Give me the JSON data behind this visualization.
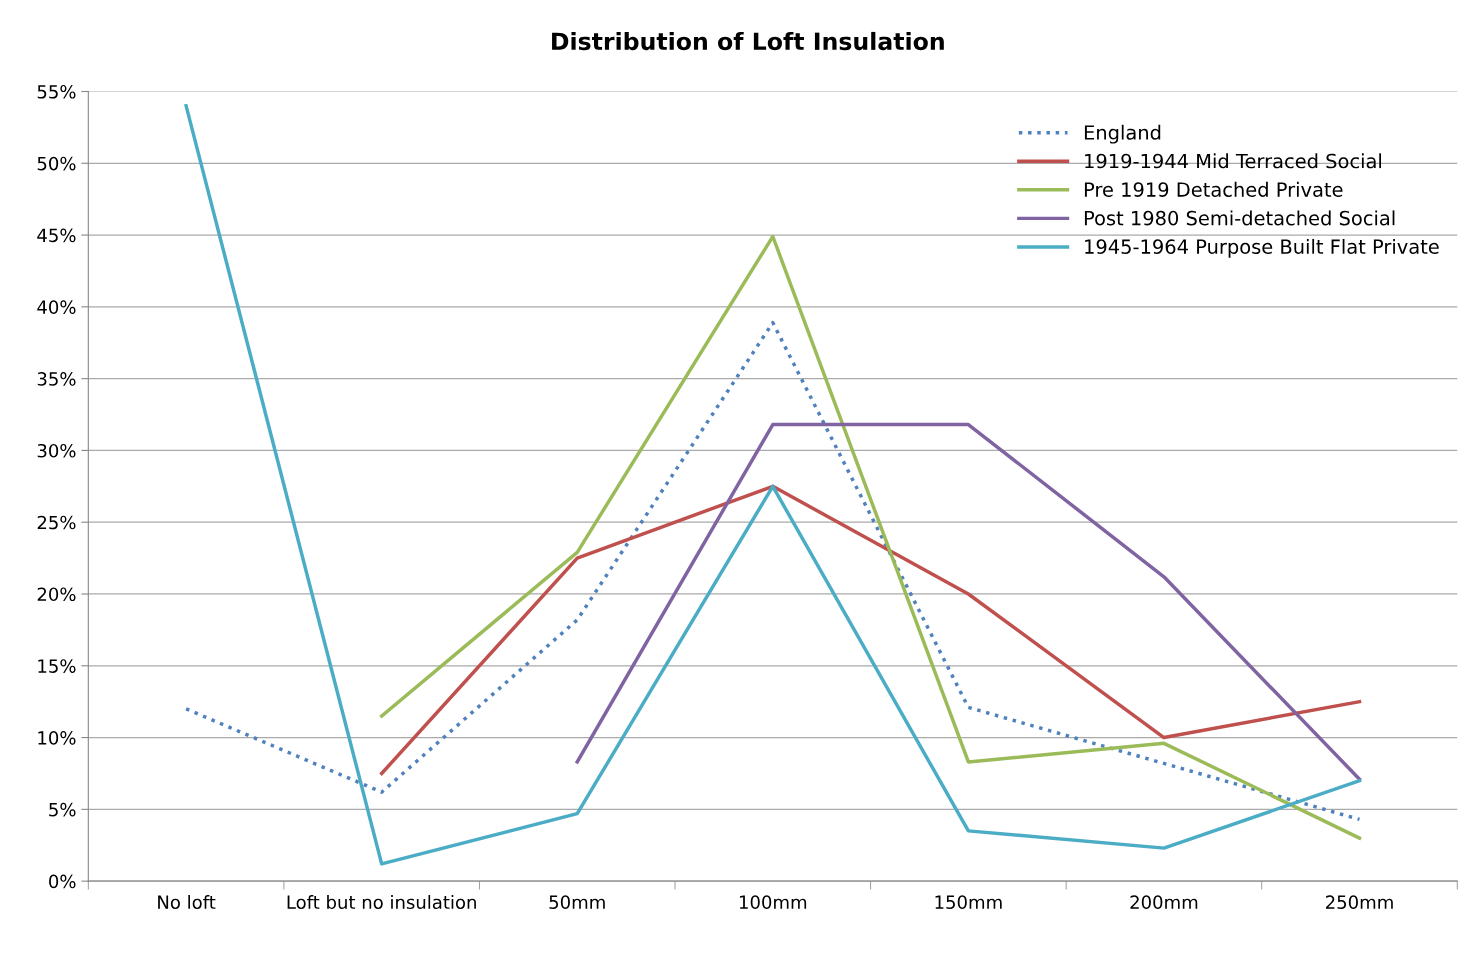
{
  "chart_data": {
    "type": "line",
    "title": "Distribution of Loft Insulation",
    "categories": [
      "No loft",
      "Loft but no insulation",
      "50mm",
      "100mm",
      "150mm",
      "200mm",
      "250mm"
    ],
    "series": [
      {
        "name": "England",
        "color": "#4f81bd",
        "line_style": "dotted",
        "values": [
          12.0,
          6.2,
          18.2,
          38.9,
          12.1,
          8.2,
          4.3
        ]
      },
      {
        "name": "1919-1944 Mid Terraced Social",
        "color": "#c0504d",
        "values": [
          null,
          7.5,
          22.5,
          27.5,
          20.0,
          10.0,
          12.5
        ]
      },
      {
        "name": "Pre 1919 Detached Private",
        "color": "#9bbb59",
        "values": [
          null,
          11.5,
          22.9,
          44.9,
          8.3,
          9.6,
          3.0
        ]
      },
      {
        "name": "Post 1980 Semi-detached Social",
        "color": "#8064a2",
        "values": [
          null,
          null,
          8.3,
          31.8,
          31.8,
          21.2,
          7.1
        ]
      },
      {
        "name": "1945-1964 Purpose Built Flat Private",
        "color": "#4bacc6",
        "values": [
          54.0,
          1.2,
          4.7,
          27.5,
          3.5,
          2.3,
          7.0
        ]
      }
    ],
    "ylim": [
      0,
      55
    ],
    "yticks": [
      {
        "value": 0,
        "label": "0%"
      },
      {
        "value": 5,
        "label": "5%"
      },
      {
        "value": 10,
        "label": "10%"
      },
      {
        "value": 15,
        "label": "15%"
      },
      {
        "value": 20,
        "label": "20%"
      },
      {
        "value": 25,
        "label": "25%"
      },
      {
        "value": 30,
        "label": "30%"
      },
      {
        "value": 35,
        "label": "35%"
      },
      {
        "value": 40,
        "label": "40%"
      },
      {
        "value": 45,
        "label": "45%"
      },
      {
        "value": 50,
        "label": "50%"
      },
      {
        "value": 55,
        "label": "55%"
      }
    ],
    "grid": "y",
    "legend": "top right"
  }
}
